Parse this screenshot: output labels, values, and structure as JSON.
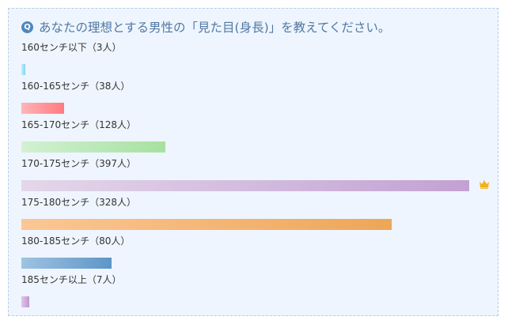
{
  "question": {
    "icon": "question-circle-icon",
    "icon_letter": "Q",
    "title": "あなたの理想とする男性の「見た目(身長)」を教えてください。"
  },
  "chart_data": {
    "type": "bar",
    "categories": [
      "160センチ以下",
      "160-165センチ",
      "165-170センチ",
      "170-175センチ",
      "175-180センチ",
      "180-185センチ",
      "185センチ以上"
    ],
    "values": [
      3,
      38,
      128,
      397,
      328,
      80,
      7
    ],
    "max_value": 397
  },
  "options": [
    {
      "label": "160センチ以下（3人）",
      "count": 3,
      "color_from": "#c4eef8",
      "color_to": "#7fd6ee"
    },
    {
      "label": "160-165センチ（38人）",
      "count": 38,
      "color_from": "#ffb5b8",
      "color_to": "#ff7a80"
    },
    {
      "label": "165-170センチ（128人）",
      "count": 128,
      "color_from": "#d2f1d2",
      "color_to": "#a6e1a0"
    },
    {
      "label": "170-175センチ（397人）",
      "count": 397,
      "color_from": "#e3d7ea",
      "color_to": "#c3a1d3",
      "top": true
    },
    {
      "label": "175-180センチ（328人）",
      "count": 328,
      "color_from": "#fbc795",
      "color_to": "#eea658"
    },
    {
      "label": "180-185センチ（80人）",
      "count": 80,
      "color_from": "#9fc3e2",
      "color_to": "#5e95c8"
    },
    {
      "label": "185センチ以上（7人）",
      "count": 7,
      "color_from": "#e0c6e8",
      "color_to": "#bf97d1"
    }
  ],
  "top_badge": {
    "icon": "crown-icon",
    "color": "#f2b21a"
  }
}
